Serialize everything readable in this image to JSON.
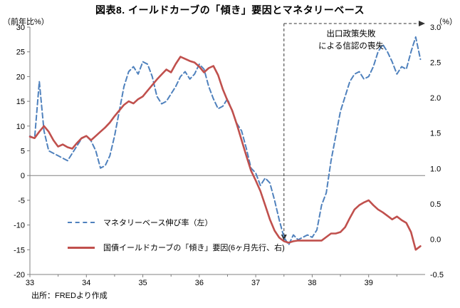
{
  "title": "図表8. イールドカーブの「傾き」要因とマネタリーベース",
  "left_axis_label": "（前年比%）",
  "right_axis_label": "（%）",
  "source": "出所：FREDより作成",
  "annotation": {
    "line1": "出口政策失敗",
    "line2": "による信認の喪失",
    "x": 37.5
  },
  "legend": [
    {
      "name": "マネタリーベース伸び率（左）",
      "color": "#4F81BD",
      "style": "dashed"
    },
    {
      "name": "国債イールドカーブの「傾き」要因(6ヶ月先行、右)",
      "color": "#C0504D",
      "style": "solid"
    }
  ],
  "colors": {
    "monetary_base": "#4F81BD",
    "yield_slope": "#C0504D",
    "axis": "#808080",
    "annotation": "#333333"
  },
  "chart_data": {
    "type": "line",
    "title": "図表8. イールドカーブの「傾き」要因とマネタリーベース",
    "x_start": 33,
    "x_step": 0.0833333,
    "xlim": [
      33,
      40
    ],
    "x_ticks": [
      33,
      34,
      35,
      36,
      37,
      38,
      39
    ],
    "left_axis": {
      "label": "（前年比%）",
      "lim": [
        -20,
        30
      ],
      "step": 5
    },
    "right_axis": {
      "label": "（%）",
      "lim": [
        -0.5,
        3.0
      ],
      "step": 0.5
    },
    "annotation_x": 37.5,
    "series": [
      {
        "name": "マネタリーベース伸び率（左）",
        "axis": "left",
        "color": "#4F81BD",
        "dash": true,
        "values": [
          8,
          7.5,
          19,
          9,
          5,
          4.5,
          4,
          3.5,
          3,
          4.5,
          6,
          7.5,
          8,
          7,
          5,
          1.5,
          2,
          4,
          8,
          13,
          18,
          21,
          22,
          20.5,
          23,
          22.5,
          20,
          16,
          14.5,
          15,
          16.5,
          18,
          20,
          21,
          19.5,
          20.5,
          22.5,
          21.5,
          18,
          15.5,
          13.5,
          14,
          15.5,
          13,
          10.5,
          9,
          5.5,
          1.5,
          0.5,
          -2,
          -0.5,
          -1.5,
          -5,
          -9,
          -12.5,
          -14,
          -12,
          -13,
          -12.5,
          -12,
          -12.5,
          -11,
          -6,
          -3.5,
          3,
          8,
          13,
          16,
          19,
          20.5,
          21,
          19.5,
          20,
          22,
          25,
          26.5,
          25,
          23,
          20.5,
          22,
          21.5,
          25,
          28,
          23.5
        ]
      },
      {
        "name": "国債イールドカーブの「傾き」要因(6ヶ月先行、右)",
        "axis": "right",
        "color": "#C0504D",
        "dash": false,
        "values": [
          1.45,
          1.43,
          1.52,
          1.6,
          1.52,
          1.4,
          1.31,
          1.34,
          1.3,
          1.28,
          1.36,
          1.43,
          1.46,
          1.4,
          1.46,
          1.52,
          1.58,
          1.65,
          1.74,
          1.82,
          1.9,
          1.95,
          1.92,
          1.98,
          2.02,
          2.1,
          2.18,
          2.26,
          2.33,
          2.4,
          2.36,
          2.48,
          2.58,
          2.55,
          2.52,
          2.5,
          2.44,
          2.36,
          2.42,
          2.45,
          2.32,
          2.12,
          1.96,
          1.82,
          1.62,
          1.4,
          1.18,
          0.97,
          0.83,
          0.68,
          0.48,
          0.28,
          0.12,
          0.02,
          -0.03,
          -0.05,
          -0.03,
          -0.02,
          -0.02,
          -0.02,
          -0.02,
          -0.02,
          -0.02,
          0.03,
          0.08,
          0.08,
          0.1,
          0.17,
          0.3,
          0.42,
          0.48,
          0.52,
          0.55,
          0.48,
          0.42,
          0.38,
          0.33,
          0.28,
          0.32,
          0.27,
          0.23,
          0.1,
          -0.15,
          -0.1
        ]
      }
    ]
  }
}
